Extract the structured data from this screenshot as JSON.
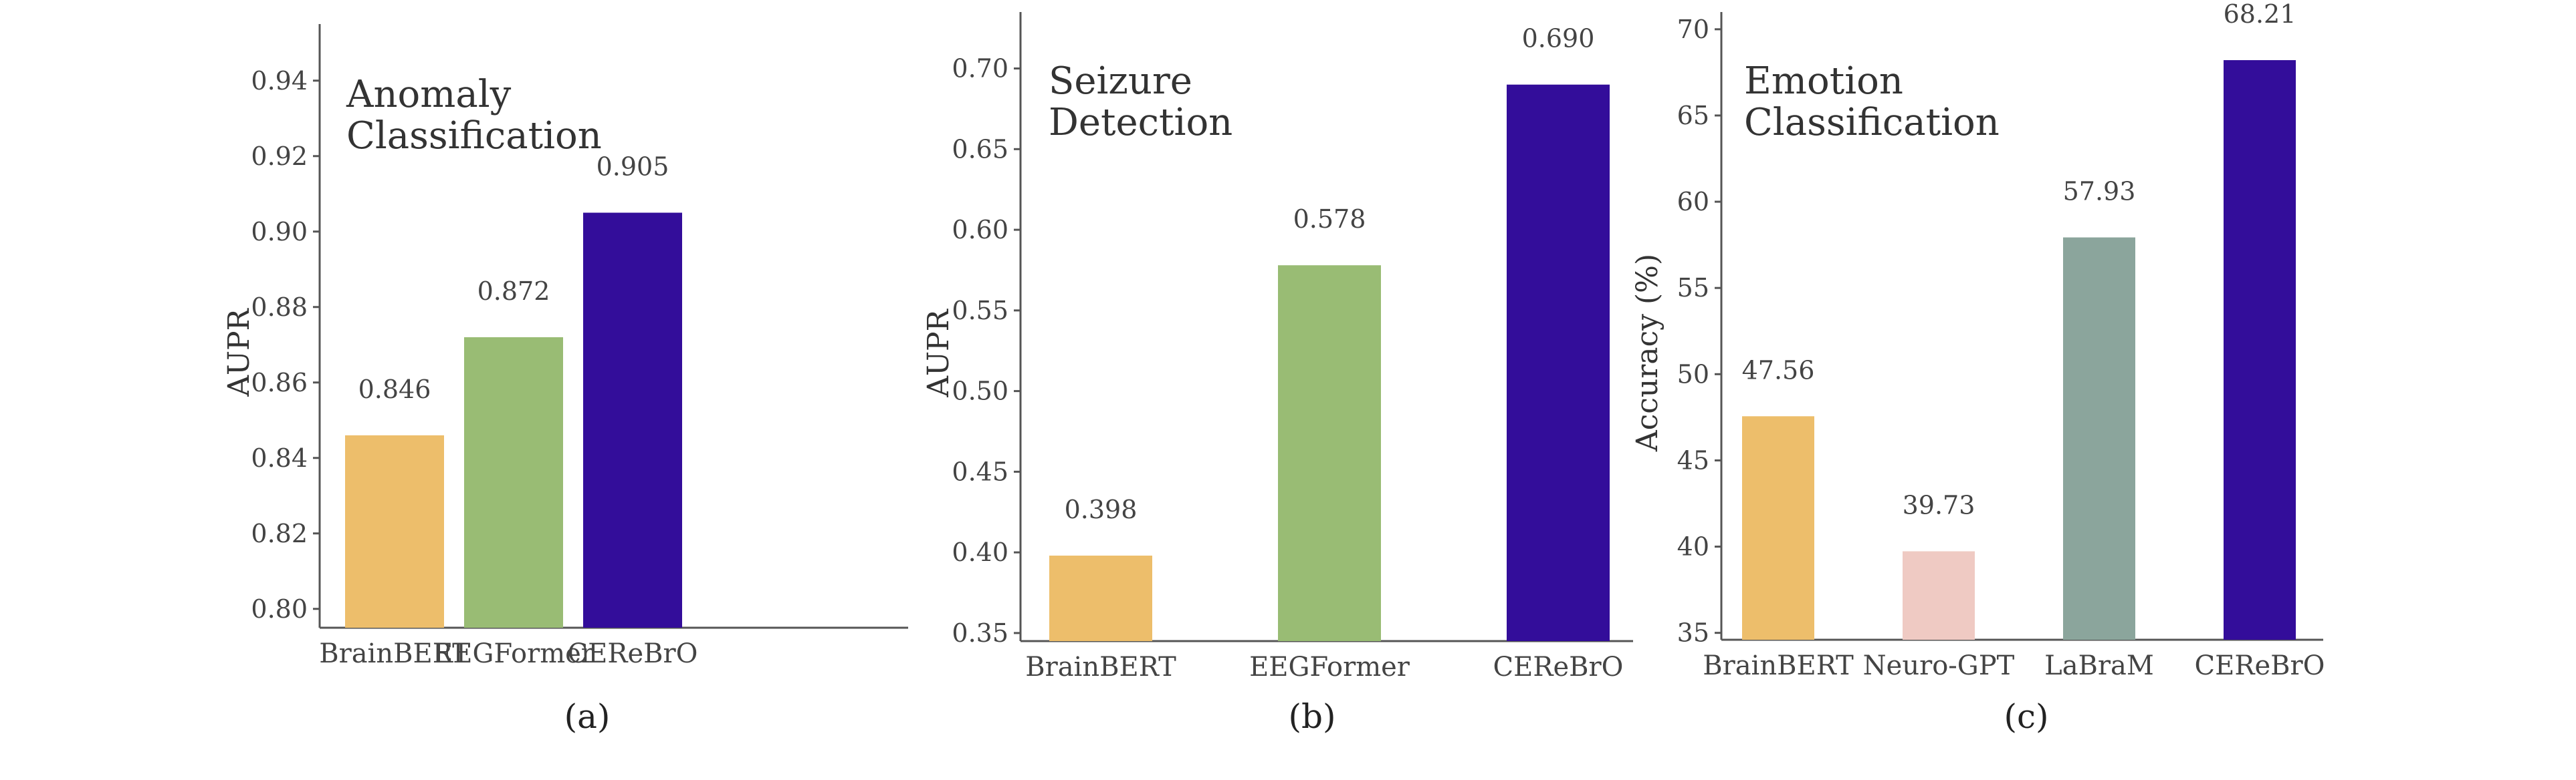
{
  "chart_data": [
    {
      "type": "bar",
      "caption": "(a)",
      "title": [
        "Anomaly",
        "Classification"
      ],
      "xlabel": "",
      "ylabel": "AUPR",
      "ylim": [
        0.795,
        0.955
      ],
      "yticks": [
        0.8,
        0.82,
        0.84,
        0.86,
        0.88,
        0.9,
        0.92,
        0.94
      ],
      "ytick_labels": [
        "0.80",
        "0.82",
        "0.84",
        "0.86",
        "0.88",
        "0.90",
        "0.92",
        "0.94"
      ],
      "categories": [
        "BrainBERT",
        "EEGFormer",
        "CEReBrO"
      ],
      "values": [
        0.846,
        0.872,
        0.905
      ],
      "value_labels": [
        "0.846",
        "0.872",
        "0.905"
      ],
      "colors": [
        "#EDBE6B",
        "#99BC74",
        "#330D9A"
      ]
    },
    {
      "type": "bar",
      "caption": "(b)",
      "title": [
        "Seizure",
        "Detection"
      ],
      "xlabel": "",
      "ylabel": "AUPR",
      "ylim": [
        0.345,
        0.735
      ],
      "yticks": [
        0.35,
        0.4,
        0.45,
        0.5,
        0.55,
        0.6,
        0.65,
        0.7
      ],
      "ytick_labels": [
        "0.35",
        "0.40",
        "0.45",
        "0.50",
        "0.55",
        "0.60",
        "0.65",
        "0.70"
      ],
      "categories": [
        "BrainBERT",
        "EEGFormer",
        "CEReBrO"
      ],
      "values": [
        0.398,
        0.578,
        0.69
      ],
      "value_labels": [
        "0.398",
        "0.578",
        "0.690"
      ],
      "colors": [
        "#EDBE6B",
        "#99BC74",
        "#330D9A"
      ]
    },
    {
      "type": "bar",
      "caption": "(c)",
      "title": [
        "Emotion",
        "Classification"
      ],
      "xlabel": "",
      "ylabel": "Accuracy (%)",
      "ylim": [
        34.6,
        71.0
      ],
      "yticks": [
        35,
        40,
        45,
        50,
        55,
        60,
        65,
        70
      ],
      "ytick_labels": [
        "35",
        "40",
        "45",
        "50",
        "55",
        "60",
        "65",
        "70"
      ],
      "categories": [
        "BrainBERT",
        "Neuro-GPT",
        "LaBraM",
        "CEReBrO"
      ],
      "values": [
        47.56,
        39.73,
        57.93,
        68.21
      ],
      "value_labels": [
        "47.56",
        "39.73",
        "57.93",
        "68.21"
      ],
      "colors": [
        "#EDBE6B",
        "#EFCAC3",
        "#8BA59C",
        "#330D9A"
      ]
    }
  ]
}
